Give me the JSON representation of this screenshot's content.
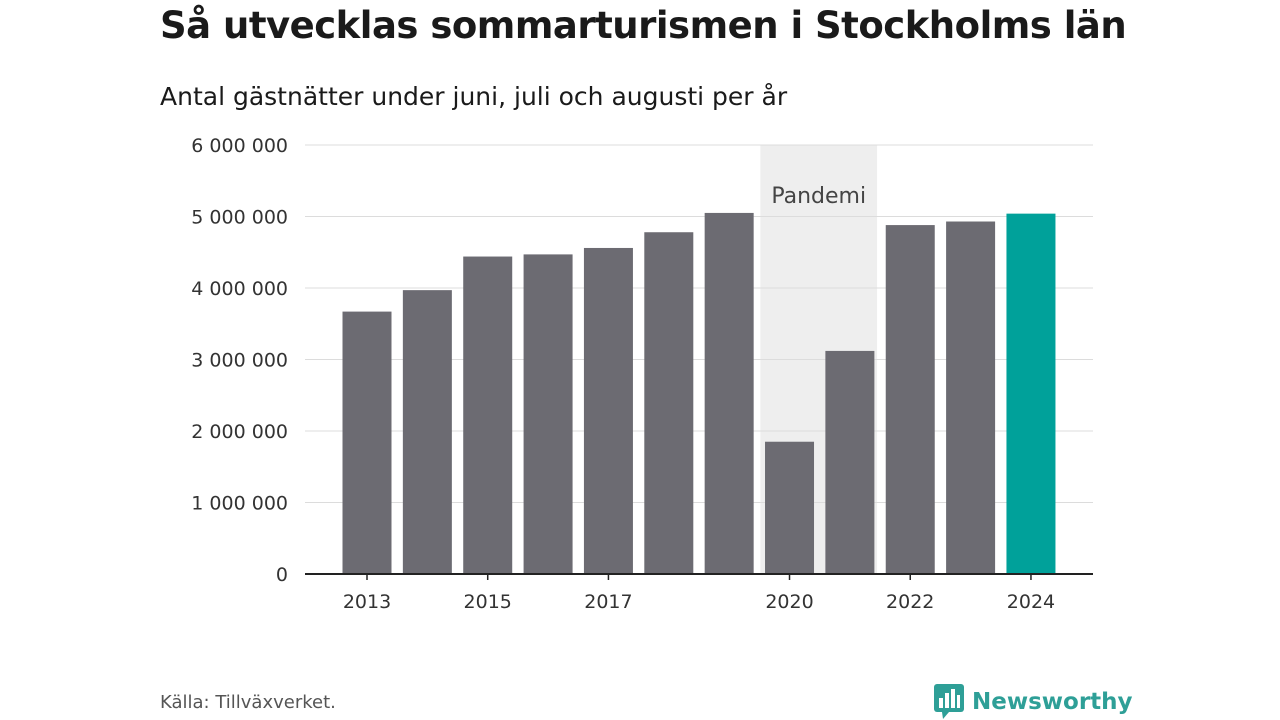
{
  "header": {
    "title": "Så utvecklas sommarturismen i Stockholms län",
    "subtitle": "Antal gästnätter under juni, juli och augusti per år"
  },
  "footer": {
    "source": "Källa: Tillväxverket.",
    "brand": "Newsworthy",
    "brand_icon": "bar-chart-logo-icon",
    "brand_color": "#2e9f97"
  },
  "chart_data": {
    "type": "bar",
    "title": "Så utvecklas sommarturismen i Stockholms län",
    "subtitle": "Antal gästnätter under juni, juli och augusti per år",
    "categories": [
      "2013",
      "2014",
      "2015",
      "2016",
      "2017",
      "2018",
      "2019",
      "2020",
      "2021",
      "2022",
      "2023",
      "2024"
    ],
    "values": [
      3670000,
      3970000,
      4440000,
      4470000,
      4560000,
      4780000,
      5050000,
      1850000,
      3120000,
      4880000,
      4930000,
      5040000
    ],
    "x_tick_labels": [
      "2013",
      "2015",
      "2017",
      "2020",
      "2022",
      "2024"
    ],
    "y_ticks": [
      0,
      1000000,
      2000000,
      3000000,
      4000000,
      5000000,
      6000000
    ],
    "y_tick_labels": [
      "0",
      "1 000 000",
      "2 000 000",
      "3 000 000",
      "4 000 000",
      "5 000 000",
      "6 000 000"
    ],
    "ylim": [
      0,
      6000000
    ],
    "grid": "horizontal",
    "highlight": {
      "category": "2024",
      "color": "#00a19a"
    },
    "bar_color": "#6c6b72",
    "annotation": {
      "label": "Pandemi",
      "from": "2020",
      "to": "2021",
      "shade_color": "#eeeeee"
    }
  }
}
